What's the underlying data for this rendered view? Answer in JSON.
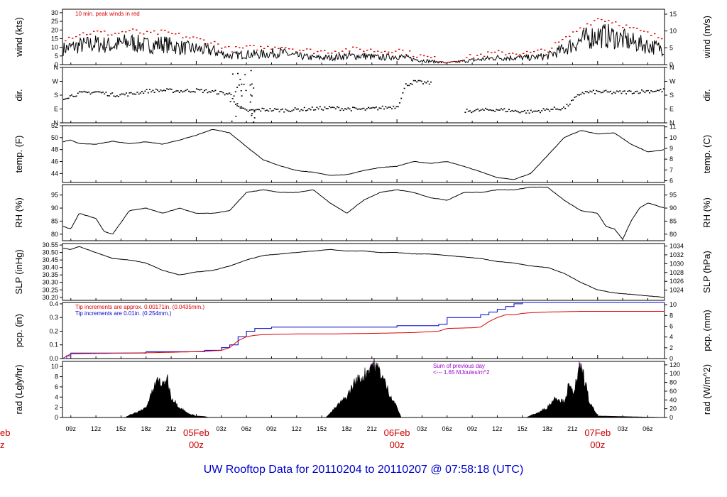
{
  "title": "UW Rooftop Data for 20110204  to  20110207 @ 07:58:18  (UTC)",
  "colors": {
    "frame": "#000000",
    "peak": "#dd0000",
    "blue": "#0000cc",
    "purple": "#9900cc",
    "daytext": "#cc0000"
  },
  "time_axis": {
    "hour_labels": [
      "09z",
      "12z",
      "15z",
      "18z",
      "21z",
      "03z",
      "06z",
      "09z",
      "12z",
      "15z",
      "18z",
      "21z",
      "03z",
      "06z",
      "09z",
      "12z",
      "15z",
      "18z",
      "21z",
      "03z",
      "06z"
    ],
    "hour_values": [
      9,
      12,
      15,
      18,
      21,
      27,
      30,
      33,
      36,
      39,
      42,
      45,
      51,
      54,
      57,
      60,
      63,
      66,
      69,
      75,
      78
    ],
    "day_labels": [
      {
        "text": "05Feb",
        "sub": "00z",
        "x": 24
      },
      {
        "text": "06Feb",
        "sub": "00z",
        "x": 48
      },
      {
        "text": "07Feb",
        "sub": "00z",
        "x": 72
      }
    ],
    "left_cut_label": {
      "text": "eb",
      "sub": "z"
    },
    "range_hours": [
      8,
      80
    ]
  },
  "chart_data": [
    {
      "type": "line",
      "id": "wind",
      "ylabel": "wind (kts)",
      "ylabel_right": "wind (m/s)",
      "ylim": [
        0,
        32
      ],
      "yticks": [
        0,
        5,
        10,
        15,
        20,
        25,
        30
      ],
      "yticks_right": [
        {
          "v": 0,
          "label": "0"
        },
        {
          "v": 9.72,
          "label": "5"
        },
        {
          "v": 19.44,
          "label": "10"
        },
        {
          "v": 29.16,
          "label": "15"
        }
      ],
      "annotations": [
        {
          "text": "10 min. peak winds in red",
          "color": "#dd0000"
        }
      ],
      "series": [
        {
          "style": "noisy",
          "color": "#000000",
          "x": [
            8,
            10,
            12,
            14,
            16,
            18,
            20,
            22,
            24,
            26,
            28,
            30,
            32,
            34,
            36,
            38,
            40,
            42,
            44,
            46,
            48,
            50,
            52,
            54,
            56,
            58,
            60,
            62,
            64,
            66,
            68,
            70,
            72,
            74,
            76,
            78,
            80
          ],
          "values": [
            9,
            11,
            12,
            11,
            13,
            11,
            12,
            10,
            9,
            8,
            5,
            6,
            6,
            7,
            5,
            4,
            4,
            5,
            5,
            4,
            5,
            3,
            2,
            1,
            2,
            3,
            4,
            4,
            4,
            5,
            9,
            14,
            17,
            16,
            13,
            11,
            9
          ]
        },
        {
          "style": "peaks",
          "color": "#dd0000",
          "x": [
            8,
            10,
            12,
            14,
            16,
            18,
            20,
            22,
            24,
            26,
            28,
            30,
            32,
            34,
            36,
            38,
            40,
            42,
            44,
            46,
            48,
            50,
            52,
            54,
            56,
            58,
            60,
            62,
            64,
            66,
            68,
            70,
            72,
            74,
            76,
            78,
            80
          ],
          "values": [
            15,
            18,
            19,
            18,
            20,
            18,
            19,
            17,
            15,
            13,
            9,
            10,
            10,
            11,
            9,
            8,
            8,
            9,
            9,
            8,
            9,
            6,
            4,
            2,
            4,
            6,
            7,
            7,
            7,
            9,
            15,
            22,
            27,
            25,
            21,
            18,
            15
          ]
        }
      ]
    },
    {
      "type": "scatter",
      "id": "dir",
      "ylabel": "dir.",
      "ylabel_right": "dir.",
      "ylim": [
        0,
        360
      ],
      "ytick_values": [
        0,
        90,
        180,
        270,
        360
      ],
      "ytick_labels": [
        "N",
        "E",
        "S",
        "W",
        "N"
      ],
      "series": [
        {
          "color": "#000000",
          "x": [
            8,
            10,
            12,
            14,
            16,
            18,
            20,
            22,
            24,
            26,
            28,
            29,
            30,
            32,
            34,
            36,
            38,
            40,
            42,
            44,
            46,
            48,
            49,
            50,
            52,
            54,
            56,
            58,
            60,
            62,
            64,
            66,
            68,
            70,
            72,
            74,
            76,
            78,
            80
          ],
          "values": [
            165,
            195,
            205,
            185,
            190,
            210,
            215,
            210,
            215,
            205,
            190,
            100,
            80,
            90,
            85,
            90,
            95,
            100,
            95,
            90,
            100,
            110,
            250,
            270,
            260,
            null,
            80,
            85,
            90,
            80,
            75,
            90,
            100,
            200,
            205,
            200,
            205,
            210,
            215
          ]
        }
      ]
    },
    {
      "type": "line",
      "id": "temp",
      "ylabel": "temp. (F)",
      "ylabel_right": "temp. (C)",
      "ylim": [
        42.5,
        52
      ],
      "yticks": [
        44,
        46,
        48,
        50,
        52
      ],
      "yticks_right": [
        {
          "v": 42.8,
          "label": "6"
        },
        {
          "v": 44.6,
          "label": "7"
        },
        {
          "v": 46.4,
          "label": "8"
        },
        {
          "v": 48.2,
          "label": "9"
        },
        {
          "v": 50.0,
          "label": "10"
        },
        {
          "v": 51.8,
          "label": "11"
        }
      ],
      "series": [
        {
          "color": "#000000",
          "x": [
            8,
            9,
            10,
            12,
            14,
            16,
            18,
            20,
            22,
            24,
            26,
            28,
            30,
            32,
            34,
            36,
            38,
            40,
            42,
            44,
            46,
            48,
            50,
            52,
            54,
            56,
            58,
            60,
            62,
            64,
            66,
            68,
            70,
            72,
            74,
            76,
            78,
            80
          ],
          "values": [
            49.3,
            49.6,
            49,
            48.9,
            49.4,
            49,
            49.3,
            48.9,
            49.6,
            50.4,
            51.4,
            50.8,
            48.5,
            46.3,
            45.3,
            44.5,
            44.2,
            43.7,
            43.8,
            44.5,
            45,
            45.2,
            46,
            45.7,
            46,
            45.2,
            44.3,
            43.3,
            43,
            44,
            47,
            50,
            51.2,
            50.6,
            50.8,
            48.9,
            47.6,
            48
          ]
        }
      ]
    },
    {
      "type": "line",
      "id": "rh",
      "ylabel": "RH (%)",
      "ylabel_right": "RH (%)",
      "ylim": [
        77.5,
        99
      ],
      "yticks": [
        80,
        85,
        90,
        95
      ],
      "yticks_right": [
        {
          "v": 80,
          "label": "80"
        },
        {
          "v": 85,
          "label": "85"
        },
        {
          "v": 90,
          "label": "90"
        },
        {
          "v": 95,
          "label": "95"
        }
      ],
      "series": [
        {
          "color": "#000000",
          "x": [
            8,
            9,
            10,
            12,
            13,
            14,
            16,
            18,
            20,
            22,
            24,
            26,
            28,
            30,
            32,
            34,
            36,
            38,
            40,
            42,
            44,
            46,
            48,
            50,
            52,
            54,
            56,
            58,
            60,
            62,
            64,
            66,
            68,
            70,
            72,
            73,
            74,
            75,
            76,
            77,
            78,
            79,
            80
          ],
          "values": [
            83,
            82,
            88,
            86,
            81,
            80,
            89,
            90,
            88,
            90,
            88,
            88,
            89,
            96,
            97,
            96,
            96,
            97,
            92,
            88,
            93,
            96,
            97,
            96,
            94,
            93,
            96,
            96,
            97,
            97,
            98,
            98,
            93,
            89,
            88,
            83,
            82,
            78,
            85,
            90,
            92,
            91,
            90
          ]
        }
      ]
    },
    {
      "type": "line",
      "id": "slp",
      "ylabel": "SLP (inHg)",
      "ylabel_right": "SLP (hPa)",
      "ylim": [
        30.18,
        30.56
      ],
      "yticks": [
        30.2,
        30.25,
        30.3,
        30.35,
        30.4,
        30.45,
        30.5,
        30.55
      ],
      "ytick_labels": [
        "30.20",
        "30.25",
        "30.30",
        "30.35",
        "30.40",
        "30.45",
        "30.50",
        "30.55"
      ],
      "yticks_right": [
        {
          "v": 30.2481,
          "label": "1024"
        },
        {
          "v": 30.3072,
          "label": "1026"
        },
        {
          "v": 30.3663,
          "label": "1028"
        },
        {
          "v": 30.4253,
          "label": "1030"
        },
        {
          "v": 30.4844,
          "label": "1032"
        },
        {
          "v": 30.5435,
          "label": "1034"
        }
      ],
      "series": [
        {
          "color": "#000000",
          "x": [
            8,
            9,
            10,
            12,
            14,
            16,
            18,
            20,
            22,
            24,
            26,
            28,
            30,
            32,
            34,
            36,
            38,
            40,
            42,
            44,
            46,
            48,
            50,
            52,
            54,
            56,
            58,
            60,
            62,
            64,
            66,
            68,
            70,
            72,
            74,
            76,
            78,
            80
          ],
          "values": [
            30.53,
            30.52,
            30.54,
            30.5,
            30.46,
            30.45,
            30.43,
            30.38,
            30.35,
            30.37,
            30.38,
            30.41,
            30.45,
            30.48,
            30.49,
            30.5,
            30.51,
            30.52,
            30.51,
            30.51,
            30.5,
            30.5,
            30.49,
            30.49,
            30.48,
            30.47,
            30.46,
            30.44,
            30.43,
            30.41,
            30.4,
            30.36,
            30.3,
            30.25,
            30.23,
            30.22,
            30.21,
            30.2
          ]
        }
      ]
    },
    {
      "type": "line",
      "id": "pcp",
      "ylabel": "pcp. (in)",
      "ylabel_right": "pcp. (mm)",
      "ylim": [
        0,
        0.41
      ],
      "yticks": [
        0,
        0.1,
        0.2,
        0.3,
        0.4
      ],
      "ytick_labels": [
        "0.0",
        "0.1",
        "0.2",
        "0.3",
        "0.4"
      ],
      "yticks_right": [
        {
          "v": 0,
          "label": "0"
        },
        {
          "v": 0.0787,
          "label": "2"
        },
        {
          "v": 0.1575,
          "label": "4"
        },
        {
          "v": 0.2362,
          "label": "6"
        },
        {
          "v": 0.315,
          "label": "8"
        },
        {
          "v": 0.3937,
          "label": "10"
        }
      ],
      "annotations": [
        {
          "text": "Tip increments are approx. 0.00171in. (0.0435mm.)",
          "color": "#dd0000"
        },
        {
          "text": "Tip increments are 0.01in. (0.254mm.)",
          "color": "#0000cc"
        }
      ],
      "series": [
        {
          "color": "#0000cc",
          "step": true,
          "x": [
            8,
            8.5,
            9,
            18,
            25,
            27,
            28,
            29,
            30,
            31,
            32,
            33,
            40,
            46,
            48,
            53,
            54,
            57,
            58,
            59,
            60,
            61,
            62,
            63,
            64,
            65,
            80
          ],
          "values": [
            0,
            0.02,
            0.04,
            0.05,
            0.06,
            0.08,
            0.1,
            0.16,
            0.2,
            0.22,
            0.22,
            0.23,
            0.23,
            0.23,
            0.24,
            0.25,
            0.3,
            0.3,
            0.32,
            0.34,
            0.36,
            0.38,
            0.4,
            0.41,
            0.41,
            0.41,
            0.41
          ]
        },
        {
          "color": "#dd0000",
          "x": [
            8,
            9,
            12,
            18,
            24,
            27,
            28,
            29,
            30,
            31,
            32,
            36,
            40,
            46,
            50,
            53,
            54,
            57,
            58,
            59,
            60,
            61,
            62,
            63,
            64,
            66,
            70,
            80
          ],
          "values": [
            0,
            0.035,
            0.037,
            0.042,
            0.05,
            0.06,
            0.08,
            0.13,
            0.16,
            0.17,
            0.175,
            0.18,
            0.18,
            0.185,
            0.19,
            0.2,
            0.22,
            0.225,
            0.23,
            0.27,
            0.3,
            0.32,
            0.32,
            0.33,
            0.335,
            0.34,
            0.345,
            0.345
          ]
        }
      ]
    },
    {
      "type": "area",
      "id": "rad",
      "ylabel": "rad (Lgly/hr)",
      "ylabel_right": "rad (W/m^2)",
      "ylim": [
        0,
        11
      ],
      "yticks": [
        0,
        2,
        4,
        6,
        8,
        10
      ],
      "yticks_right": [
        {
          "v": 0,
          "label": "0"
        },
        {
          "v": 1.72,
          "label": "20"
        },
        {
          "v": 3.44,
          "label": "40"
        },
        {
          "v": 5.16,
          "label": "60"
        },
        {
          "v": 6.88,
          "label": "80"
        },
        {
          "v": 8.6,
          "label": "100"
        },
        {
          "v": 10.32,
          "label": "120"
        }
      ],
      "annotations": [
        {
          "text": "Sum of previous day",
          "color": "#9900cc"
        },
        {
          "text": "<--- 1.65 MJoules/m^2",
          "color": "#9900cc"
        }
      ],
      "series": [
        {
          "color": "#000000",
          "x": [
            8,
            15.5,
            16,
            17,
            18,
            18.5,
            19,
            19.5,
            20,
            20.5,
            21,
            22,
            23,
            24,
            25,
            25.5,
            39.5,
            40,
            41,
            42,
            43,
            44,
            45,
            46,
            47,
            48,
            48.5,
            63.5,
            64,
            65,
            66,
            67,
            68,
            68.5,
            69,
            69.5,
            70,
            70.5,
            71,
            72,
            80
          ],
          "values": [
            0,
            0,
            0.5,
            1,
            2,
            4,
            6,
            7.5,
            6,
            8,
            4,
            2,
            0.8,
            0.3,
            0.2,
            0,
            0,
            0.8,
            2.5,
            4,
            7,
            8,
            10.5,
            9,
            5,
            2,
            0,
            0,
            0.4,
            1,
            2,
            4,
            3,
            6,
            5,
            7,
            10,
            7,
            3,
            0.3,
            0
          ]
        }
      ]
    }
  ]
}
